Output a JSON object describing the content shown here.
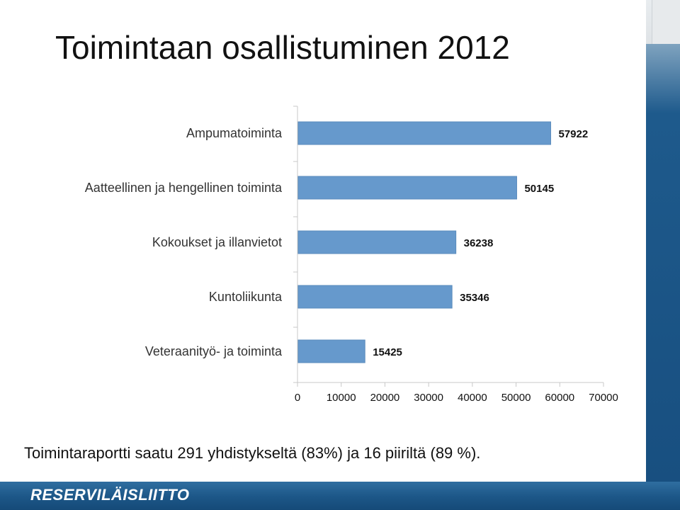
{
  "title": "Toimintaan osallistuminen 2012",
  "footer_note": "Toimintaraportti saatu 291 yhdistykseltä (83%) ja 16 piiriltä (89 %).",
  "brand": "RESERVILÄISLIITTO",
  "colors": {
    "bar": "#6699cc",
    "bar_stroke": "#5a8bbd",
    "axis": "#c8c8c8",
    "brand_bg": "#1c5687"
  },
  "chart_data": {
    "type": "bar",
    "orientation": "horizontal",
    "title": "",
    "xlabel": "",
    "ylabel": "",
    "categories": [
      "Ampumatoiminta",
      "Aatteellinen ja hengellinen toiminta",
      "Kokoukset ja illanvietot",
      "Kuntoliikunta",
      "Veteraanityö- ja toiminta"
    ],
    "values": [
      57922,
      50145,
      36238,
      35346,
      15425
    ],
    "xlim": [
      0,
      70000
    ],
    "ticks": [
      "0",
      "10000",
      "20000",
      "30000",
      "40000",
      "50000",
      "60000",
      "70000"
    ],
    "data_labels": true,
    "grid": false
  }
}
